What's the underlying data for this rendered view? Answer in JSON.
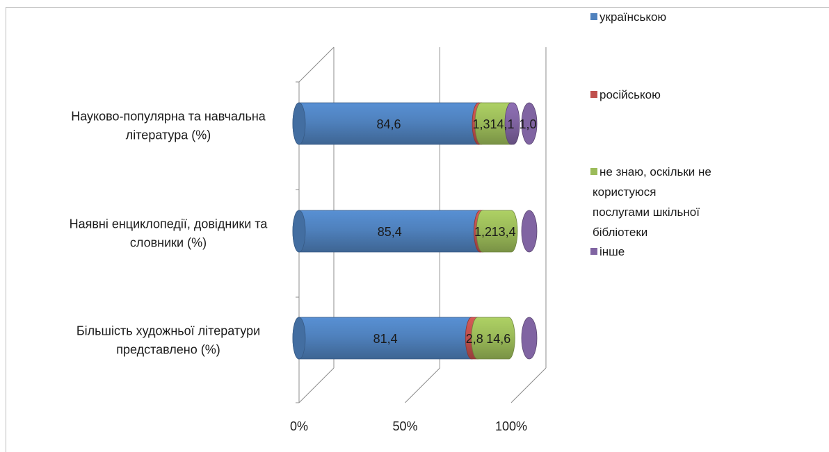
{
  "chart_data": {
    "type": "bar",
    "orientation": "horizontal",
    "stacked": "100%",
    "style": "3d-cylinder",
    "categories": [
      [
        "Науково-популярна та навчальна",
        "література  (%)"
      ],
      [
        "Наявні енциклопедії, довідники та",
        "словники (%)"
      ],
      [
        "Більшість художньої літератури",
        "представлено  (%)"
      ]
    ],
    "series": [
      {
        "name": "українською",
        "color": "#4f81bd",
        "values": [
          84.6,
          85.4,
          81.4
        ]
      },
      {
        "name": "російською",
        "color": "#c0504d",
        "values": [
          1.3,
          1.2,
          2.8
        ]
      },
      {
        "name": [
          "не знаю, оскільки не",
          "користуюся",
          "послугами шкільної",
          "бібліотеки"
        ],
        "color": "#9bbb59",
        "values": [
          14.1,
          13.4,
          14.6
        ]
      },
      {
        "name": "інше",
        "color": "#8064a2",
        "values": [
          1.0,
          0,
          0
        ]
      }
    ],
    "data_labels": [
      [
        "84,6",
        "1,3",
        "14,1",
        "1,0"
      ],
      [
        "85,4",
        "1,2",
        "13,4",
        ""
      ],
      [
        "81,4",
        "2,8",
        "14,6",
        ""
      ]
    ],
    "xticks": [
      "0%",
      "50%",
      "100%"
    ],
    "xlim": [
      0,
      100
    ],
    "grid": true,
    "legend": "right"
  }
}
